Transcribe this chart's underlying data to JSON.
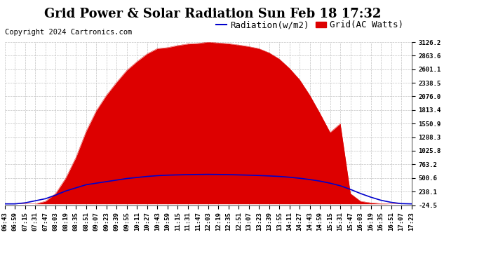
{
  "title": "Grid Power & Solar Radiation Sun Feb 18 17:32",
  "copyright": "Copyright 2024 Cartronics.com",
  "legend_radiation": "Radiation(w/m2)",
  "legend_grid": "Grid(AC Watts)",
  "y_ticks": [
    -24.5,
    238.1,
    500.6,
    763.2,
    1025.8,
    1288.3,
    1550.9,
    1813.4,
    2076.0,
    2338.5,
    2601.1,
    2863.6,
    3126.2
  ],
  "ylim": [
    -24.5,
    3126.2
  ],
  "background_color": "#ffffff",
  "plot_bg_color": "#ffffff",
  "radiation_fill_color": "#dd0000",
  "radiation_line_color": "#dd0000",
  "grid_line_color": "#0000cc",
  "grid_dashes_color": "#bbbbbb",
  "title_fontsize": 13,
  "copyright_fontsize": 7.5,
  "legend_fontsize": 9,
  "tick_fontsize": 6.5,
  "x_tick_labels": [
    "06:43",
    "06:59",
    "07:15",
    "07:31",
    "07:47",
    "08:03",
    "08:19",
    "08:35",
    "08:51",
    "09:07",
    "09:23",
    "09:39",
    "09:55",
    "10:11",
    "10:27",
    "10:43",
    "10:59",
    "11:15",
    "11:31",
    "11:47",
    "12:03",
    "12:19",
    "12:35",
    "12:51",
    "13:07",
    "13:23",
    "13:39",
    "13:55",
    "14:11",
    "14:27",
    "14:43",
    "14:59",
    "15:15",
    "15:31",
    "15:47",
    "16:03",
    "16:19",
    "16:35",
    "16:51",
    "17:07",
    "17:23"
  ],
  "radiation_data": [
    0,
    0,
    0,
    0,
    50,
    200,
    500,
    900,
    1400,
    1800,
    2100,
    2350,
    2580,
    2750,
    2900,
    3000,
    3020,
    3060,
    3090,
    3100,
    3126,
    3110,
    3095,
    3070,
    3040,
    3000,
    2920,
    2800,
    2620,
    2400,
    2100,
    1750,
    1380,
    1550,
    200,
    50,
    20,
    5,
    0,
    0,
    0
  ],
  "grid_data": [
    0,
    0,
    20,
    60,
    100,
    170,
    250,
    310,
    370,
    400,
    430,
    460,
    490,
    510,
    530,
    545,
    555,
    560,
    565,
    568,
    570,
    568,
    565,
    560,
    555,
    548,
    540,
    530,
    515,
    495,
    470,
    440,
    400,
    350,
    280,
    200,
    130,
    70,
    30,
    5,
    0
  ]
}
